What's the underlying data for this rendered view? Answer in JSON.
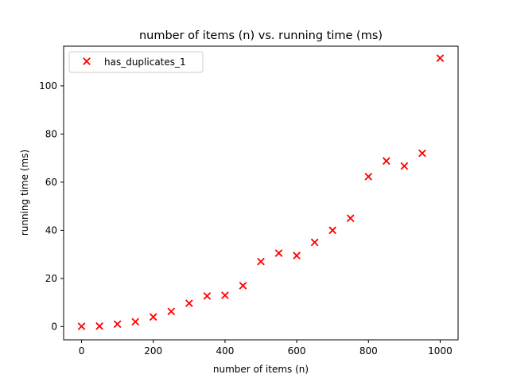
{
  "chart_data": {
    "type": "scatter",
    "title": "number of items (n) vs. running time (ms)",
    "xlabel": "number of items (n)",
    "ylabel": "running time (ms)",
    "xlim": [
      -50,
      1050
    ],
    "ylim": [
      -5.5,
      116.5
    ],
    "xticks": [
      0,
      200,
      400,
      600,
      800,
      1000
    ],
    "yticks": [
      0,
      20,
      40,
      60,
      80,
      100
    ],
    "grid": false,
    "legend_position": "top-left",
    "series": [
      {
        "name": "has_duplicates_1",
        "color": "#ff0000",
        "marker": "x",
        "x": [
          0,
          50,
          100,
          150,
          200,
          250,
          300,
          350,
          400,
          450,
          500,
          550,
          600,
          650,
          700,
          750,
          800,
          850,
          900,
          950,
          1000
        ],
        "y": [
          0.1,
          0.2,
          1.0,
          2.0,
          4.0,
          6.3,
          9.7,
          12.7,
          13.0,
          17.0,
          27.0,
          30.5,
          29.5,
          35.0,
          40.0,
          45.0,
          62.3,
          68.8,
          66.7,
          72.0,
          111.5
        ]
      }
    ]
  }
}
